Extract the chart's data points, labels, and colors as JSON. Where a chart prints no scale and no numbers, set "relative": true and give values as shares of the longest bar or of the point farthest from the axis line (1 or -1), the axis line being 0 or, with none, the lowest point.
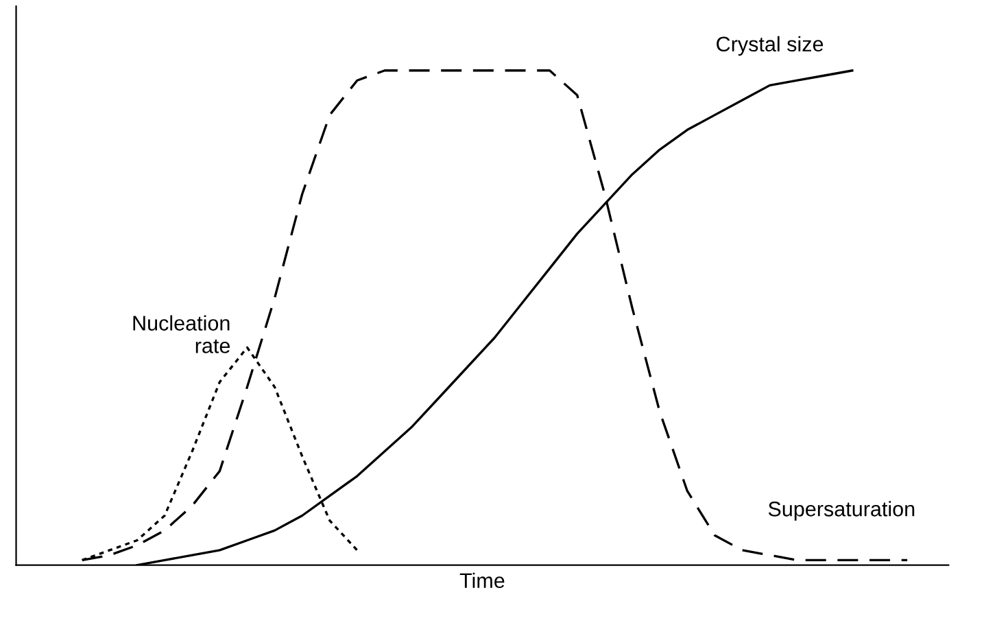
{
  "chart_data": {
    "type": "line",
    "relative": true,
    "xlabel": "Time",
    "categories": [
      null,
      null,
      null,
      null,
      null,
      null,
      null,
      null,
      null,
      null,
      null,
      null,
      null,
      null,
      null,
      null,
      null,
      null,
      null,
      null,
      null,
      null,
      null,
      null,
      null,
      null,
      null,
      null,
      null,
      null,
      null
    ],
    "series": [
      {
        "name": "Crystal size",
        "color": "#000000",
        "line_style": "solid",
        "values": [
          null,
          null,
          0.0,
          0.01,
          0.02,
          0.03,
          0.05,
          0.07,
          0.1,
          0.14,
          0.18,
          0.23,
          0.28,
          0.34,
          0.4,
          0.46,
          0.53,
          0.6,
          0.67,
          0.73,
          0.79,
          0.84,
          0.88,
          0.91,
          0.94,
          0.97,
          0.98,
          0.99,
          1.0,
          null,
          null
        ]
      },
      {
        "name": "Supersaturation",
        "color": "#000000",
        "line_style": "dashed",
        "values": [
          0.01,
          0.02,
          0.04,
          0.07,
          0.12,
          0.19,
          0.36,
          0.54,
          0.75,
          0.91,
          0.98,
          1.0,
          1.0,
          1.0,
          1.0,
          1.0,
          1.0,
          1.0,
          0.95,
          0.75,
          0.52,
          0.31,
          0.15,
          0.06,
          0.03,
          0.02,
          0.01,
          0.01,
          0.01,
          0.01,
          0.01
        ]
      },
      {
        "name": "Nucleation\nrate",
        "color": "#000000",
        "line_style": "dotted",
        "values": [
          0.01,
          0.03,
          0.05,
          0.1,
          0.23,
          0.37,
          0.44,
          0.36,
          0.22,
          0.09,
          0.03,
          null,
          null,
          null,
          null,
          null,
          null,
          null,
          null,
          null,
          null,
          null,
          null,
          null,
          null,
          null,
          null,
          null,
          null,
          null,
          null
        ]
      }
    ]
  }
}
